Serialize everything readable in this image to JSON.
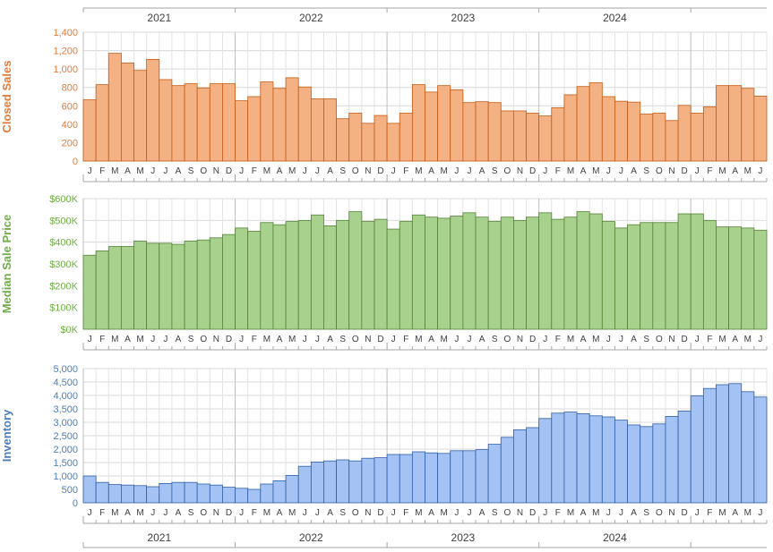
{
  "years": [
    "2021",
    "2022",
    "2023",
    "2024"
  ],
  "months": [
    "J",
    "F",
    "M",
    "A",
    "M",
    "J",
    "J",
    "A",
    "S",
    "O",
    "N",
    "D",
    "J",
    "F",
    "M",
    "A",
    "M",
    "J",
    "J",
    "A",
    "S",
    "O",
    "N",
    "D",
    "J",
    "F",
    "M",
    "A",
    "M",
    "J",
    "J",
    "A",
    "S",
    "O",
    "N",
    "D",
    "J",
    "F",
    "M",
    "A",
    "M",
    "J",
    "J",
    "A",
    "S",
    "O",
    "N",
    "D",
    "J",
    "F",
    "M",
    "A",
    "M",
    "J"
  ],
  "chart_data": [
    {
      "type": "bar",
      "ylabel": "Closed Sales",
      "color": "#f4b183",
      "edge": "#c55a11",
      "label_color": "#e07b39",
      "ylim": [
        0,
        1400
      ],
      "yticks": [
        0,
        200,
        400,
        600,
        800,
        1000,
        1200,
        1400
      ],
      "ytick_labels": [
        "0",
        "200",
        "400",
        "600",
        "800",
        "1,000",
        "1,200",
        "1,400"
      ],
      "grid": true,
      "values": [
        665,
        830,
        1170,
        1065,
        985,
        1105,
        885,
        820,
        840,
        795,
        840,
        840,
        655,
        700,
        860,
        790,
        905,
        805,
        675,
        675,
        460,
        520,
        410,
        495,
        410,
        520,
        830,
        750,
        820,
        775,
        635,
        645,
        635,
        545,
        545,
        520,
        490,
        580,
        720,
        810,
        850,
        700,
        650,
        640,
        510,
        520,
        440,
        605,
        520,
        590,
        820,
        820,
        790,
        705
      ]
    },
    {
      "type": "bar",
      "ylabel": "Median Sale Price",
      "color": "#a9d18e",
      "edge": "#548235",
      "label_color": "#70ad47",
      "ylim": [
        0,
        600000
      ],
      "yticks": [
        0,
        100000,
        200000,
        300000,
        400000,
        500000,
        600000
      ],
      "ytick_labels": [
        "$0K",
        "$100K",
        "$200K",
        "$300K",
        "$400K",
        "$500K",
        "$600K"
      ],
      "grid": true,
      "values": [
        340000,
        360000,
        380000,
        380000,
        405000,
        395000,
        395000,
        390000,
        405000,
        410000,
        420000,
        435000,
        465000,
        450000,
        490000,
        480000,
        495000,
        500000,
        525000,
        475000,
        500000,
        540000,
        495000,
        505000,
        460000,
        495000,
        525000,
        515000,
        510000,
        520000,
        535000,
        515000,
        495000,
        515000,
        500000,
        515000,
        535000,
        505000,
        515000,
        540000,
        530000,
        495000,
        465000,
        480000,
        490000,
        490000,
        490000,
        530000,
        530000,
        500000,
        470000,
        470000,
        465000,
        455000
      ]
    },
    {
      "type": "bar",
      "ylabel": "Inventory",
      "color": "#a4c2f4",
      "edge": "#2e5fa8",
      "label_color": "#4a7ebb",
      "ylim": [
        0,
        5000
      ],
      "yticks": [
        0,
        500,
        1000,
        1500,
        2000,
        2500,
        3000,
        3500,
        4000,
        4500,
        5000
      ],
      "ytick_labels": [
        "0",
        "500",
        "1,000",
        "1,500",
        "2,000",
        "2,500",
        "3,000",
        "3,500",
        "4,000",
        "4,500",
        "5,000"
      ],
      "grid": true,
      "values": [
        1000,
        760,
        680,
        660,
        640,
        600,
        720,
        760,
        760,
        700,
        660,
        580,
        540,
        500,
        700,
        820,
        1020,
        1360,
        1520,
        1560,
        1600,
        1560,
        1660,
        1680,
        1800,
        1800,
        1900,
        1860,
        1840,
        1940,
        1940,
        1980,
        2180,
        2440,
        2720,
        2800,
        3140,
        3340,
        3380,
        3320,
        3240,
        3200,
        3080,
        2900,
        2840,
        2940,
        3220,
        3420,
        3980,
        4260,
        4400,
        4440,
        4140,
        3940
      ]
    }
  ]
}
